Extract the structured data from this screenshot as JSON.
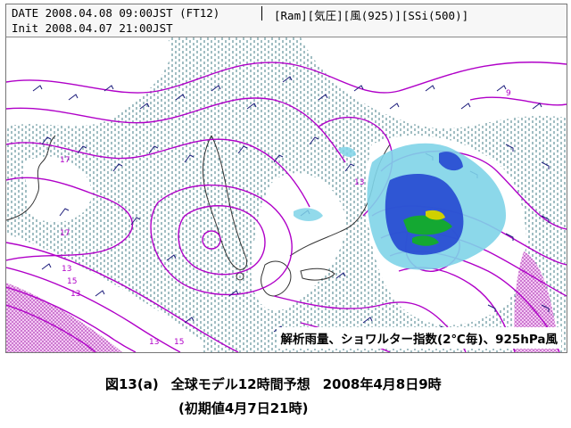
{
  "header": {
    "date_line": "DATE 2008.04.08 09:00JST (FT12)",
    "init_line": "Init 2008.04.07 21:00JST",
    "elements": "[Ram][気圧][風(925)][SSi(500)]"
  },
  "map": {
    "caption": "解析雨量、ショワルター指数(2℃毎)、925hPa風",
    "contour_labels": [
      "17",
      "17",
      "13",
      "15",
      "13",
      "15",
      "13",
      "13",
      "9"
    ],
    "colors": {
      "isobar": "#b000c8",
      "stable_hatch": "#2e6e7a",
      "coast": "#333333",
      "wind_barb": "#1a1a7a",
      "rain_light": "#7fd4e8",
      "rain_moderate": "#1e3fd0",
      "rain_heavy": "#14a832",
      "rain_intense": "#d0d000",
      "unstable_fill": "#e8a6e8"
    }
  },
  "figure": {
    "number": "図13(a)",
    "title": "全球モデル12時間予想",
    "valid_time": "2008年4月8日9時",
    "init_time": "(初期値4月7日21時)"
  }
}
